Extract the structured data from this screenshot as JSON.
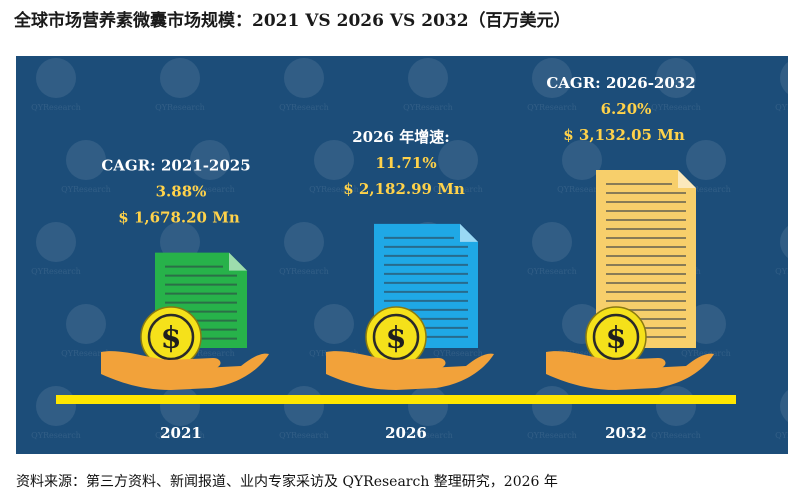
{
  "title": "全球市场营养素微囊市场规模：2021 VS 2026 VS 2032（百万美元）",
  "source": "资料来源：第三方资料、新闻报道、业内专家采访及 QYResearch 整理研究，2026 年",
  "watermark": "QYResearch",
  "colors": {
    "panel": "#1c4d79",
    "baseline": "#ffe600",
    "label_white": "#ffffff",
    "label_gold": "#ffd24a",
    "bar_2021": "#27b24a",
    "bar_2026": "#1fa8e6",
    "bar_2032": "#f7cf6b",
    "coin": "#f5e11a",
    "hand": "#f2a23a"
  },
  "chart_data": {
    "type": "bar",
    "categories": [
      "2021",
      "2026",
      "2032"
    ],
    "values": [
      1678.2,
      2182.99,
      3132.05
    ],
    "unit": "Mn",
    "annotations": [
      {
        "category": "2021",
        "heading": "CAGR: 2021-2025",
        "rate": "3.88%",
        "value_label": "$ 1,678.20 Mn"
      },
      {
        "category": "2026",
        "heading": "2026 年增速:",
        "rate": "11.71%",
        "value_label": "$ 2,182.99 Mn"
      },
      {
        "category": "2032",
        "heading": "CAGR: 2026-2032",
        "rate": "6.20%",
        "value_label": "$ 3,132.05 Mn"
      }
    ]
  }
}
